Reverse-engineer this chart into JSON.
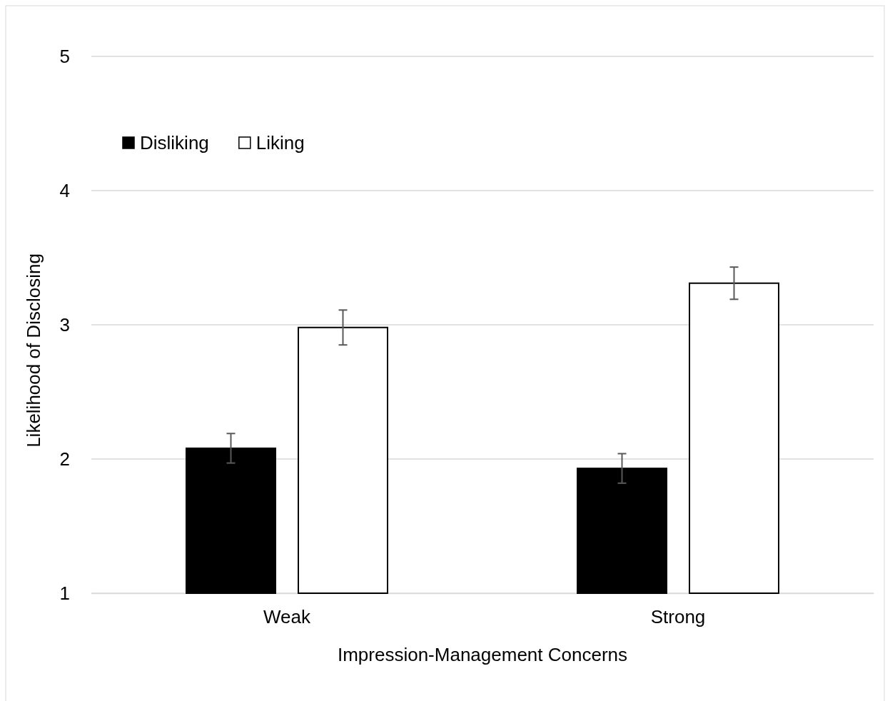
{
  "chart_data": {
    "type": "bar",
    "xlabel": "Impression-Management Concerns",
    "ylabel": "Likelihood of Disclosing",
    "categories": [
      "Weak",
      "Strong"
    ],
    "series": [
      {
        "name": "Disliking",
        "color": "#000000",
        "values": [
          2.08,
          1.93
        ],
        "errors": [
          0.11,
          0.11
        ]
      },
      {
        "name": "Liking",
        "color": "#ffffff",
        "values": [
          2.98,
          3.31
        ],
        "errors": [
          0.13,
          0.12
        ]
      }
    ],
    "ylim": [
      1,
      5
    ],
    "yticks": [
      1,
      2,
      3,
      4,
      5
    ],
    "grid": "y",
    "legend": "top left"
  }
}
